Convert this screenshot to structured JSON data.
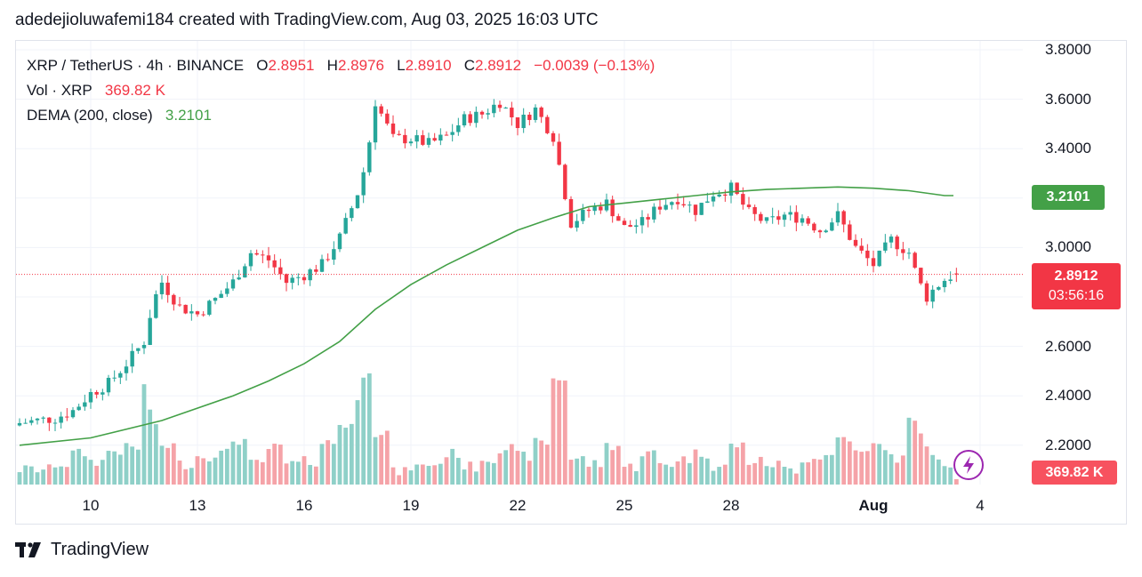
{
  "header": {
    "text": "adedejioluwafemi184 created with TradingView.com, Aug 03, 2025 16:03 UTC"
  },
  "legend": {
    "symbol": "XRP / TetherUS · 4h · BINANCE",
    "o_label": "O",
    "o_value": "2.8951",
    "h_label": "H",
    "h_value": "2.8976",
    "l_label": "L",
    "l_value": "2.8910",
    "c_label": "C",
    "c_value": "2.8912",
    "change": "−0.0039 (−0.13%)",
    "vol_label": "Vol · XRP",
    "vol_value": "369.82 K",
    "dema_label": "DEMA (200, close)",
    "dema_value": "3.2101"
  },
  "badges": {
    "dema": "3.2101",
    "price": "2.8912",
    "countdown": "03:56:16",
    "volume": "369.82 K"
  },
  "footer": {
    "brand": "TradingView",
    "logo_icon": "tradingview-logo-icon"
  },
  "colors": {
    "up": "#26a69a",
    "down": "#f23645",
    "dema": "#43a047",
    "vol_up": "#8fd0c8",
    "vol_down": "#f5a3a8"
  },
  "chart_data": {
    "type": "candlestick",
    "symbol": "XRP / TetherUS",
    "interval": "4h",
    "exchange": "BINANCE",
    "ylim": [
      2.1,
      3.85
    ],
    "y_ticks": [
      "3.8000",
      "3.6000",
      "3.4000",
      "3.2000",
      "3.0000",
      "2.8000",
      "2.6000",
      "2.4000",
      "2.2000"
    ],
    "x_ticks": [
      {
        "label": "10",
        "day": 10,
        "bold": false
      },
      {
        "label": "13",
        "day": 13,
        "bold": false
      },
      {
        "label": "16",
        "day": 16,
        "bold": false
      },
      {
        "label": "19",
        "day": 19,
        "bold": false
      },
      {
        "label": "22",
        "day": 22,
        "bold": false
      },
      {
        "label": "25",
        "day": 25,
        "bold": false
      },
      {
        "label": "28",
        "day": 28,
        "bold": false
      },
      {
        "label": "Aug",
        "day": 32,
        "bold": true
      },
      {
        "label": "4",
        "day": 35,
        "bold": false
      }
    ],
    "series_close": [
      [
        8.0,
        2.29
      ],
      [
        8.5,
        2.3
      ],
      [
        9.0,
        2.31
      ],
      [
        9.5,
        2.34
      ],
      [
        10.0,
        2.41
      ],
      [
        10.5,
        2.45
      ],
      [
        11.0,
        2.53
      ],
      [
        11.5,
        2.62
      ],
      [
        11.75,
        2.78
      ],
      [
        12.0,
        2.86
      ],
      [
        12.5,
        2.76
      ],
      [
        13.0,
        2.73
      ],
      [
        13.5,
        2.79
      ],
      [
        14.0,
        2.86
      ],
      [
        14.5,
        2.98
      ],
      [
        15.0,
        2.95
      ],
      [
        15.5,
        2.86
      ],
      [
        16.0,
        2.89
      ],
      [
        16.5,
        2.93
      ],
      [
        17.0,
        3.04
      ],
      [
        17.5,
        3.22
      ],
      [
        17.75,
        3.35
      ],
      [
        18.0,
        3.59
      ],
      [
        18.5,
        3.44
      ],
      [
        19.0,
        3.44
      ],
      [
        19.5,
        3.42
      ],
      [
        20.0,
        3.45
      ],
      [
        20.5,
        3.52
      ],
      [
        21.0,
        3.54
      ],
      [
        21.5,
        3.59
      ],
      [
        22.0,
        3.5
      ],
      [
        22.5,
        3.56
      ],
      [
        23.0,
        3.45
      ],
      [
        23.5,
        3.1
      ],
      [
        24.0,
        3.15
      ],
      [
        24.5,
        3.18
      ],
      [
        25.0,
        3.08
      ],
      [
        25.5,
        3.1
      ],
      [
        26.0,
        3.17
      ],
      [
        26.5,
        3.2
      ],
      [
        27.0,
        3.15
      ],
      [
        27.5,
        3.22
      ],
      [
        28.0,
        3.24
      ],
      [
        28.5,
        3.14
      ],
      [
        29.0,
        3.1
      ],
      [
        29.5,
        3.13
      ],
      [
        30.0,
        3.12
      ],
      [
        30.5,
        3.07
      ],
      [
        31.0,
        3.13
      ],
      [
        31.5,
        3.0
      ],
      [
        32.0,
        2.93
      ],
      [
        32.5,
        3.03
      ],
      [
        33.0,
        2.98
      ],
      [
        33.25,
        2.87
      ],
      [
        33.5,
        2.8
      ],
      [
        33.75,
        2.84
      ],
      [
        34.0,
        2.87
      ],
      [
        34.25,
        2.8912
      ]
    ],
    "dema": [
      [
        8.0,
        2.2
      ],
      [
        10.0,
        2.23
      ],
      [
        12.0,
        2.3
      ],
      [
        14.0,
        2.4
      ],
      [
        15.0,
        2.46
      ],
      [
        16.0,
        2.53
      ],
      [
        17.0,
        2.62
      ],
      [
        18.0,
        2.75
      ],
      [
        19.0,
        2.85
      ],
      [
        20.0,
        2.93
      ],
      [
        21.0,
        3.0
      ],
      [
        22.0,
        3.07
      ],
      [
        23.0,
        3.12
      ],
      [
        24.0,
        3.165
      ],
      [
        25.0,
        3.18
      ],
      [
        26.0,
        3.195
      ],
      [
        27.0,
        3.21
      ],
      [
        28.0,
        3.225
      ],
      [
        29.0,
        3.235
      ],
      [
        30.0,
        3.24
      ],
      [
        31.0,
        3.245
      ],
      [
        32.0,
        3.24
      ],
      [
        33.0,
        3.23
      ],
      [
        34.0,
        3.21
      ],
      [
        34.25,
        3.2101
      ]
    ],
    "last_price": 2.8912,
    "dema_last": 3.2101,
    "volume_last": "369.82 K"
  }
}
